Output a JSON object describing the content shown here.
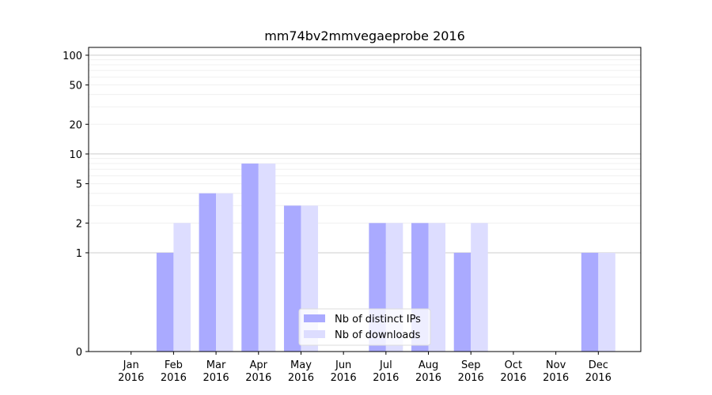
{
  "chart_data": {
    "type": "bar",
    "title": "mm74bv2mmvegaeprobe 2016",
    "xlabel": "",
    "ylabel": "",
    "y_scale": "symlog",
    "ylim": [
      0,
      120
    ],
    "y_ticks": [
      0,
      1,
      2,
      5,
      10,
      20,
      50,
      100
    ],
    "grid": true,
    "legend_position": "bottom-center",
    "categories": [
      [
        "Jan",
        "2016"
      ],
      [
        "Feb",
        "2016"
      ],
      [
        "Mar",
        "2016"
      ],
      [
        "Apr",
        "2016"
      ],
      [
        "May",
        "2016"
      ],
      [
        "Jun",
        "2016"
      ],
      [
        "Jul",
        "2016"
      ],
      [
        "Aug",
        "2016"
      ],
      [
        "Sep",
        "2016"
      ],
      [
        "Oct",
        "2016"
      ],
      [
        "Nov",
        "2016"
      ],
      [
        "Dec",
        "2016"
      ]
    ],
    "series": [
      {
        "name": "Nb of distinct IPs",
        "color": "#aaaaff",
        "values": [
          0,
          1,
          4,
          8,
          3,
          0,
          2,
          2,
          1,
          0,
          0,
          1
        ]
      },
      {
        "name": "Nb of downloads",
        "color": "#ddddff",
        "values": [
          0,
          2,
          4,
          8,
          3,
          0,
          2,
          2,
          2,
          0,
          0,
          1
        ]
      }
    ]
  }
}
